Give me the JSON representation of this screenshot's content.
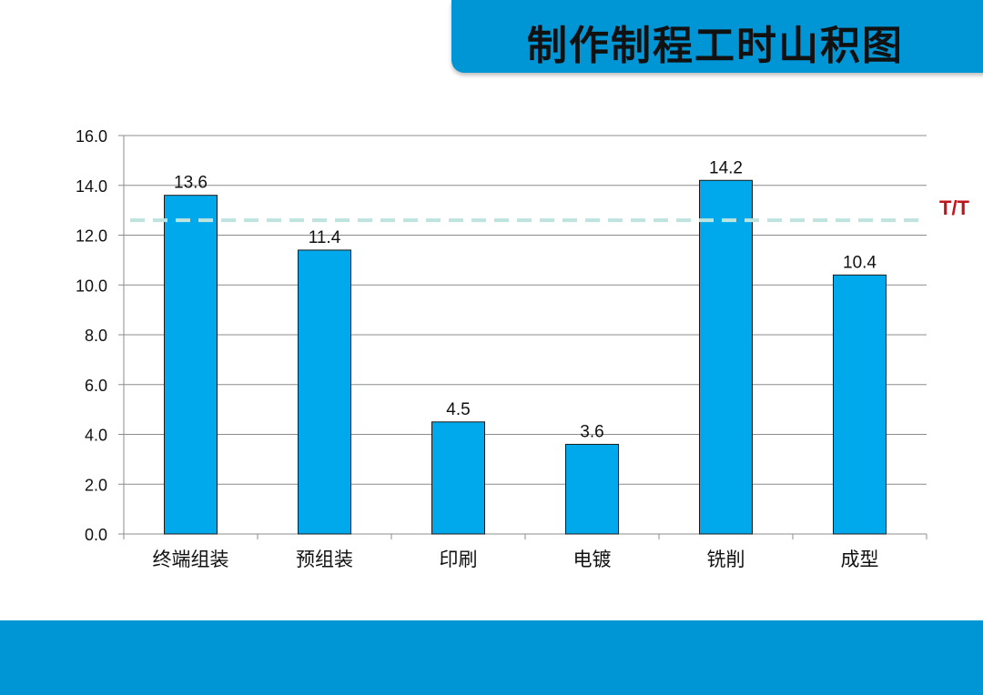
{
  "title": "制作制程工时山积图",
  "colors": {
    "accent": "#0096d6",
    "bar_fill": "#00a8ec",
    "bar_stroke": "#1a1a1a",
    "tt_line": "#bfe3de",
    "tt_label": "#c0161b"
  },
  "chart_data": {
    "type": "bar",
    "categories": [
      "终端组装",
      "预组装",
      "印刷",
      "电镀",
      "铣削",
      "成型"
    ],
    "values": [
      13.6,
      11.4,
      4.5,
      3.6,
      14.2,
      10.4
    ],
    "value_labels": [
      "13.6",
      "11.4",
      "4.5",
      "3.6",
      "14.2",
      "10.4"
    ],
    "ylim": [
      0,
      16
    ],
    "yticks": [
      "0.0",
      "2.0",
      "4.0",
      "6.0",
      "8.0",
      "10.0",
      "12.0",
      "14.0",
      "16.0"
    ],
    "grid": true,
    "reference_line": {
      "label": "T/T",
      "value": 12.6
    }
  }
}
